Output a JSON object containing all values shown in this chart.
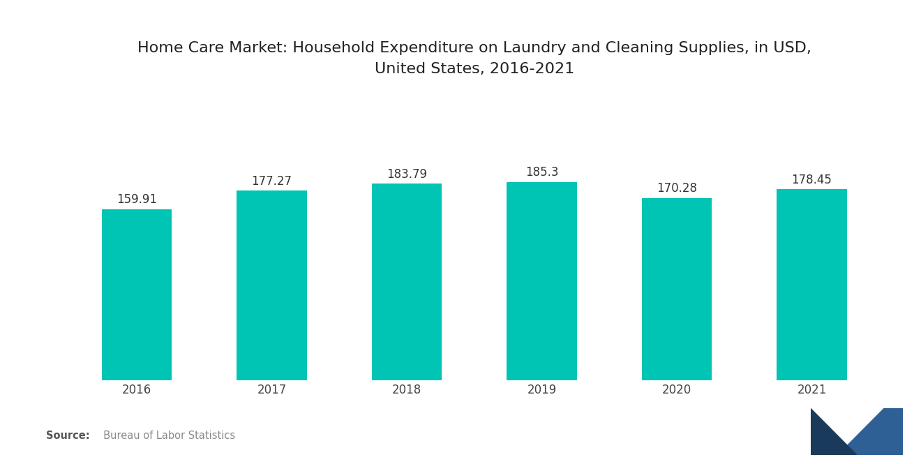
{
  "title": "Home Care Market: Household Expenditure on Laundry and Cleaning Supplies, in USD,\nUnited States, 2016-2021",
  "categories": [
    "2016",
    "2017",
    "2018",
    "2019",
    "2020",
    "2021"
  ],
  "values": [
    159.91,
    177.27,
    183.79,
    185.3,
    170.28,
    178.45
  ],
  "bar_color": "#00C4B4",
  "background_color": "#FFFFFF",
  "title_fontsize": 16,
  "label_fontsize": 12,
  "tick_fontsize": 12,
  "source_bold": "Source:",
  "source_normal": "  Bureau of Labor Statistics",
  "source_color_bold": "#555555",
  "source_color_normal": "#888888",
  "ylim": [
    0,
    260
  ],
  "bar_width": 0.52,
  "logo_color_left": "#1a3a5c",
  "logo_color_right": "#2e6096"
}
